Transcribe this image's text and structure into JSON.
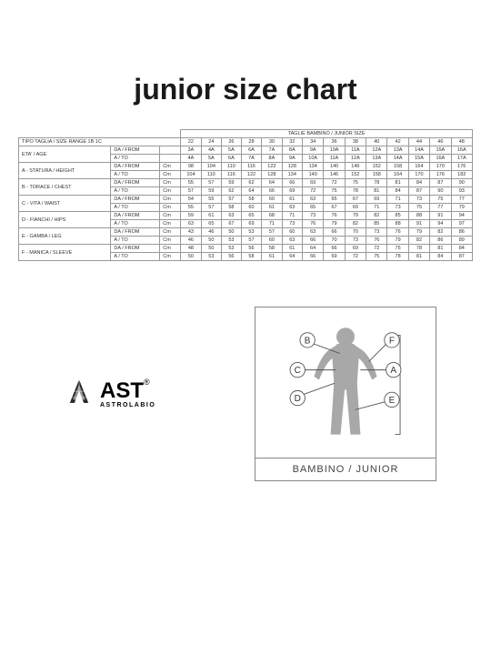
{
  "title": "junior size chart",
  "table": {
    "group_header": "TAGLIE BAMBINO / JUNIOR SIZE",
    "range_label": "TIPO TAGLIA / SIZE RANGE 1B 1C",
    "sizes": [
      "22",
      "24",
      "26",
      "28",
      "30",
      "32",
      "34",
      "36",
      "38",
      "40",
      "42",
      "44",
      "46",
      "48"
    ],
    "measurements": [
      {
        "label": "ETA' / AGE",
        "rows": [
          {
            "sub": "DA / FROM",
            "unit": "",
            "vals": [
              "3A",
              "4A",
              "5A",
              "6A",
              "7A",
              "8A",
              "9A",
              "10A",
              "11A",
              "12A",
              "13A",
              "14A",
              "15A",
              "16A"
            ]
          },
          {
            "sub": "A / TO",
            "unit": "",
            "vals": [
              "4A",
              "5A",
              "6A",
              "7A",
              "8A",
              "9A",
              "10A",
              "11A",
              "12A",
              "13A",
              "14A",
              "15A",
              "16A",
              "17A"
            ]
          }
        ]
      },
      {
        "label": "A - STATURA / HEIGHT",
        "rows": [
          {
            "sub": "DA / FROM",
            "unit": "Cm",
            "vals": [
              "98",
              "104",
              "110",
              "116",
              "122",
              "128",
              "134",
              "140",
              "146",
              "152",
              "158",
              "164",
              "170",
              "176"
            ]
          },
          {
            "sub": "A / TO",
            "unit": "Cm",
            "vals": [
              "104",
              "110",
              "116",
              "122",
              "128",
              "134",
              "140",
              "146",
              "152",
              "158",
              "164",
              "170",
              "176",
              "182"
            ]
          }
        ]
      },
      {
        "label": "B - TORACE / CHEST",
        "rows": [
          {
            "sub": "DA / FROM",
            "unit": "Cm",
            "vals": [
              "55",
              "57",
              "59",
              "62",
              "64",
              "66",
              "69",
              "72",
              "75",
              "78",
              "81",
              "84",
              "87",
              "90"
            ]
          },
          {
            "sub": "A / TO",
            "unit": "Cm",
            "vals": [
              "57",
              "59",
              "62",
              "64",
              "66",
              "69",
              "72",
              "75",
              "78",
              "81",
              "84",
              "87",
              "90",
              "93"
            ]
          }
        ]
      },
      {
        "label": "C - VITA / WAIST",
        "rows": [
          {
            "sub": "DA / FROM",
            "unit": "Cm",
            "vals": [
              "54",
              "55",
              "57",
              "58",
              "60",
              "61",
              "63",
              "65",
              "67",
              "69",
              "71",
              "73",
              "75",
              "77"
            ]
          },
          {
            "sub": "A / TO",
            "unit": "Cm",
            "vals": [
              "55",
              "57",
              "58",
              "60",
              "61",
              "63",
              "65",
              "67",
              "69",
              "71",
              "73",
              "75",
              "77",
              "79"
            ]
          }
        ]
      },
      {
        "label": "D - FIANCHI / HIPS",
        "rows": [
          {
            "sub": "DA / FROM",
            "unit": "Cm",
            "vals": [
              "59",
              "61",
              "63",
              "65",
              "68",
              "71",
              "73",
              "76",
              "79",
              "82",
              "85",
              "88",
              "91",
              "94"
            ]
          },
          {
            "sub": "A / TO",
            "unit": "Cm",
            "vals": [
              "63",
              "65",
              "67",
              "69",
              "71",
              "73",
              "76",
              "79",
              "82",
              "85",
              "88",
              "91",
              "94",
              "97"
            ]
          }
        ]
      },
      {
        "label": "E - GAMBA / LEG",
        "rows": [
          {
            "sub": "DA / FROM",
            "unit": "Cm",
            "vals": [
              "43",
              "46",
              "50",
              "53",
              "57",
              "60",
              "63",
              "66",
              "70",
              "73",
              "76",
              "79",
              "82",
              "86"
            ]
          },
          {
            "sub": "A / TO",
            "unit": "Cm",
            "vals": [
              "46",
              "50",
              "53",
              "57",
              "60",
              "63",
              "66",
              "70",
              "73",
              "76",
              "79",
              "82",
              "86",
              "89"
            ]
          }
        ]
      },
      {
        "label": "F - MANICA / SLEEVE",
        "rows": [
          {
            "sub": "DA / FROM",
            "unit": "Cm",
            "vals": [
              "48",
              "50",
              "53",
              "56",
              "58",
              "61",
              "64",
              "66",
              "69",
              "72",
              "75",
              "78",
              "81",
              "84"
            ]
          },
          {
            "sub": "A / TO",
            "unit": "Cm",
            "vals": [
              "50",
              "53",
              "56",
              "58",
              "61",
              "64",
              "66",
              "69",
              "72",
              "75",
              "78",
              "81",
              "84",
              "87"
            ]
          }
        ]
      }
    ]
  },
  "brand": {
    "main": "AST",
    "sub": "ASTROLABIO",
    "reg": "®"
  },
  "diagram": {
    "caption": "BAMBINO / JUNIOR",
    "callouts": [
      "A",
      "B",
      "C",
      "D",
      "E",
      "F"
    ],
    "figure_color": "#a8a8a8",
    "line_color": "#555",
    "circle_fill": "#ffffff",
    "circle_stroke": "#555"
  },
  "colors": {
    "text": "#1a1a1a",
    "border": "#999",
    "bg": "#ffffff"
  }
}
